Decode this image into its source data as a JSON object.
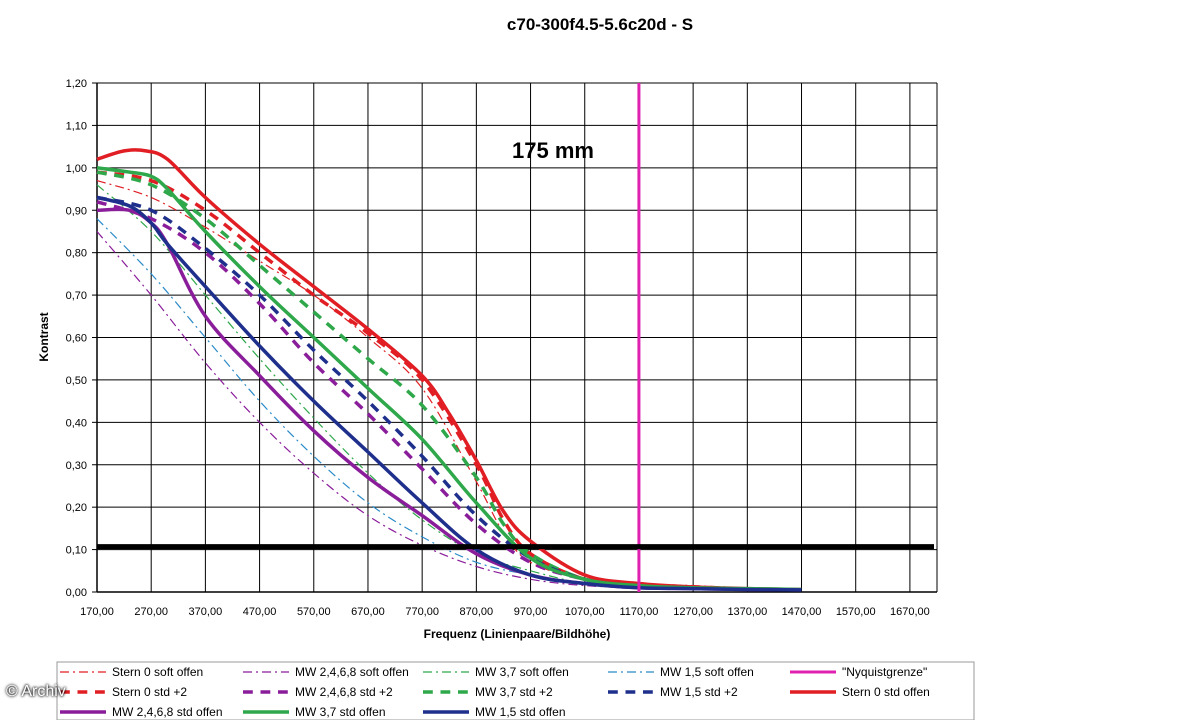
{
  "credit": "© Archiv",
  "chart_data": {
    "type": "line",
    "title": "c70-300f4.5-5.6c20d - S",
    "annotation": "175 mm",
    "xlabel": "Frequenz (Linienpaare/Bildhöhe)",
    "ylabel": "Kontrast",
    "xlim": [
      170,
      1720
    ],
    "ylim": [
      0,
      1.2
    ],
    "x_ticks": [
      "170,00",
      "270,00",
      "370,00",
      "470,00",
      "570,00",
      "670,00",
      "770,00",
      "870,00",
      "970,00",
      "1070,00",
      "1170,00",
      "1270,00",
      "1370,00",
      "1470,00",
      "1570,00",
      "1670,00"
    ],
    "y_ticks": [
      "0,00",
      "0,10",
      "0,20",
      "0,30",
      "0,40",
      "0,50",
      "0,60",
      "0,70",
      "0,80",
      "0,90",
      "1,00",
      "1,10",
      "1,20"
    ],
    "grid": true,
    "legend_position": "bottom",
    "reference_lines": [
      {
        "name": "\"Nyquistgrenze\"",
        "orientation": "vertical",
        "x": 1170,
        "color": "#e020b0"
      },
      {
        "orientation": "horizontal",
        "y": 0.107,
        "color": "#000000"
      }
    ],
    "series": [
      {
        "name": "Stern 0 soft offen",
        "color": "#e01e24",
        "style": "dashdot",
        "width": 1.2,
        "x": [
          170,
          270,
          370,
          470,
          570,
          670,
          770,
          870,
          920,
          970,
          1070,
          1170,
          1270,
          1370,
          1470
        ],
        "y": [
          0.97,
          0.93,
          0.86,
          0.78,
          0.7,
          0.6,
          0.48,
          0.26,
          0.14,
          0.07,
          0.03,
          0.02,
          0.015,
          0.01,
          0.008
        ]
      },
      {
        "name": "MW 2,4,6,8 soft offen",
        "color": "#8a1e9a",
        "style": "dashdot",
        "width": 1.2,
        "x": [
          170,
          270,
          370,
          470,
          570,
          670,
          770,
          870,
          970,
          1070,
          1170
        ],
        "y": [
          0.85,
          0.7,
          0.54,
          0.4,
          0.28,
          0.18,
          0.11,
          0.06,
          0.03,
          0.015,
          0.01
        ]
      },
      {
        "name": "MW 3,7 soft offen",
        "color": "#2ea84a",
        "style": "dashdot",
        "width": 1.2,
        "x": [
          170,
          270,
          370,
          470,
          570,
          670,
          770,
          870,
          970,
          1070,
          1170
        ],
        "y": [
          0.96,
          0.85,
          0.7,
          0.55,
          0.41,
          0.28,
          0.17,
          0.09,
          0.05,
          0.02,
          0.01
        ]
      },
      {
        "name": "MW 1,5 soft offen",
        "color": "#2a8ac8",
        "style": "dashdot",
        "width": 1.2,
        "x": [
          170,
          270,
          370,
          470,
          570,
          670,
          770,
          870,
          970,
          1070,
          1170
        ],
        "y": [
          0.88,
          0.75,
          0.6,
          0.45,
          0.32,
          0.21,
          0.13,
          0.07,
          0.04,
          0.02,
          0.01
        ]
      },
      {
        "name": "\"Nyquistgrenze\"",
        "color": "#e020b0",
        "style": "solid",
        "width": 3,
        "x": [],
        "y": []
      },
      {
        "name": "Stern 0 std +2",
        "color": "#e01e24",
        "style": "dash",
        "width": 3.5,
        "x": [
          170,
          270,
          370,
          470,
          570,
          670,
          770,
          870,
          920,
          970,
          1070,
          1170
        ],
        "y": [
          0.99,
          0.97,
          0.9,
          0.8,
          0.7,
          0.61,
          0.5,
          0.3,
          0.17,
          0.09,
          0.03,
          0.015
        ]
      },
      {
        "name": "MW 2,4,6,8 std +2",
        "color": "#8a1e9a",
        "style": "dash",
        "width": 3.5,
        "x": [
          170,
          270,
          370,
          470,
          570,
          670,
          770,
          870,
          970,
          1070,
          1170
        ],
        "y": [
          0.92,
          0.88,
          0.8,
          0.68,
          0.54,
          0.42,
          0.29,
          0.16,
          0.07,
          0.03,
          0.01
        ]
      },
      {
        "name": "MW 3,7 std +2",
        "color": "#2ea84a",
        "style": "dash",
        "width": 3.5,
        "x": [
          170,
          270,
          370,
          470,
          570,
          670,
          770,
          870,
          920,
          970,
          1070,
          1170
        ],
        "y": [
          0.99,
          0.96,
          0.88,
          0.77,
          0.66,
          0.55,
          0.44,
          0.27,
          0.16,
          0.09,
          0.03,
          0.015
        ]
      },
      {
        "name": "MW 1,5 std +2",
        "color": "#1e2f8c",
        "style": "dash",
        "width": 3.5,
        "x": [
          170,
          270,
          370,
          470,
          570,
          670,
          770,
          870,
          970,
          1070,
          1170
        ],
        "y": [
          0.93,
          0.9,
          0.81,
          0.7,
          0.57,
          0.45,
          0.32,
          0.18,
          0.08,
          0.03,
          0.01
        ]
      },
      {
        "name": "Stern 0 std offen",
        "color": "#e01e24",
        "style": "solid",
        "width": 3.5,
        "x": [
          170,
          220,
          260,
          300,
          370,
          470,
          570,
          670,
          770,
          820,
          870,
          920,
          970,
          1070,
          1170,
          1270,
          1370,
          1470
        ],
        "y": [
          1.02,
          1.04,
          1.04,
          1.02,
          0.93,
          0.82,
          0.72,
          0.62,
          0.51,
          0.42,
          0.31,
          0.19,
          0.12,
          0.04,
          0.02,
          0.012,
          0.008,
          0.006
        ]
      },
      {
        "name": "MW 2,4,6,8 std offen",
        "color": "#8a1e9a",
        "style": "solid",
        "width": 3.5,
        "x": [
          170,
          230,
          270,
          300,
          370,
          470,
          570,
          670,
          770,
          870,
          970,
          1070,
          1170,
          1270,
          1370,
          1470
        ],
        "y": [
          0.9,
          0.9,
          0.87,
          0.82,
          0.65,
          0.51,
          0.38,
          0.27,
          0.18,
          0.09,
          0.04,
          0.02,
          0.01,
          0.008,
          0.006,
          0.005
        ]
      },
      {
        "name": "MW 3,7 std offen",
        "color": "#2ea84a",
        "style": "solid",
        "width": 3.5,
        "x": [
          170,
          230,
          270,
          300,
          370,
          470,
          570,
          670,
          770,
          870,
          970,
          1070,
          1170,
          1270,
          1370,
          1470
        ],
        "y": [
          1.0,
          0.99,
          0.98,
          0.95,
          0.85,
          0.72,
          0.6,
          0.48,
          0.36,
          0.21,
          0.08,
          0.03,
          0.015,
          0.01,
          0.008,
          0.006
        ]
      },
      {
        "name": "MW 1,5 std offen",
        "color": "#1e2f8c",
        "style": "solid",
        "width": 3.5,
        "x": [
          170,
          230,
          270,
          300,
          370,
          470,
          570,
          670,
          770,
          870,
          970,
          1070,
          1170,
          1270,
          1370,
          1470
        ],
        "y": [
          0.93,
          0.91,
          0.87,
          0.82,
          0.72,
          0.58,
          0.45,
          0.33,
          0.21,
          0.1,
          0.04,
          0.02,
          0.01,
          0.008,
          0.006,
          0.005
        ]
      }
    ]
  }
}
